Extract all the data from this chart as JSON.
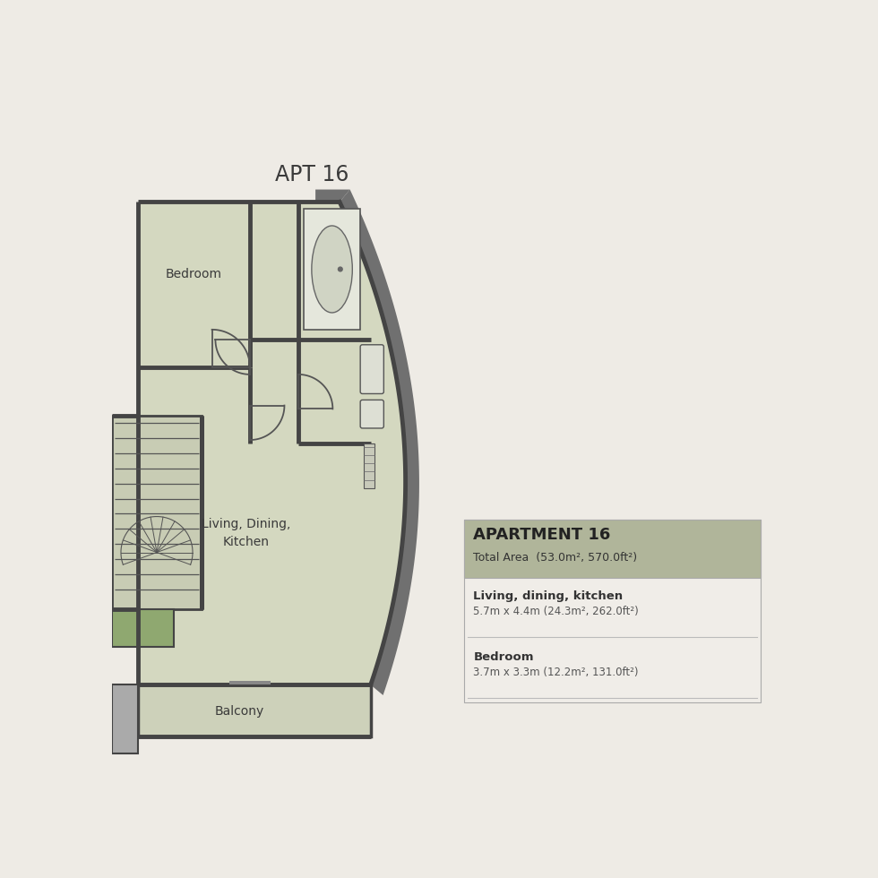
{
  "bg_color": "#eeebe5",
  "floorplan_fill": "#d4d8c0",
  "wall_dark": "#555555",
  "wall_mid": "#666666",
  "wall_light": "#888888",
  "title": "APT 16",
  "apt_title": "APARTMENT 16",
  "apt_subtitle": "Total Area  (53.0m², 570.0ft²)",
  "info_header_bg": "#b0b59a",
  "info_body_bg": "#f0ede8",
  "room_details": [
    {
      "name": "Living, dining, kitchen",
      "dims": "5.7m x 4.4m (24.3m², 262.0ft²)"
    },
    {
      "name": "Bedroom",
      "dims": "3.7m x 3.3m (12.2m², 131.0ft²)"
    }
  ],
  "stair_green": "#8fa870",
  "balcony_fill": "#cdd1ba",
  "fixture_fill": "#e2e4d8",
  "outer_wall_fill": "#707070"
}
